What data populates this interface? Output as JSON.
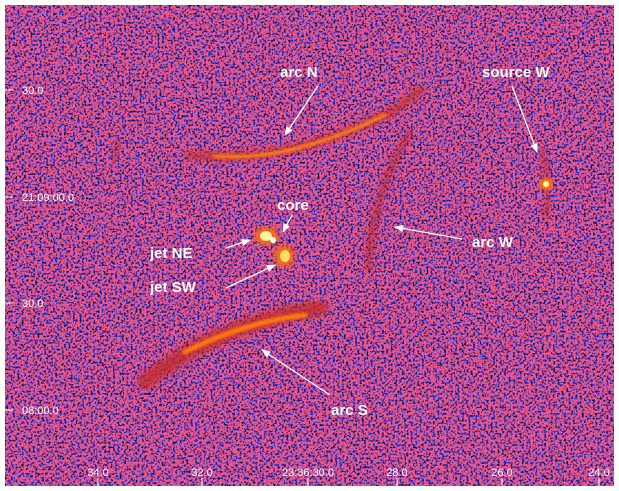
{
  "annotations": [
    "arc N",
    "source W",
    "core",
    "jet NE",
    "jet SW",
    "arc W",
    "arc S"
  ],
  "x_axis_labels": [
    "34.0",
    "32.0",
    "23:36:30.0",
    "28.0",
    "26.0",
    "24.0"
  ],
  "y_axis_labels": [
    "30.0",
    "21:09:00.0",
    "30.0",
    "08:00.0"
  ]
}
